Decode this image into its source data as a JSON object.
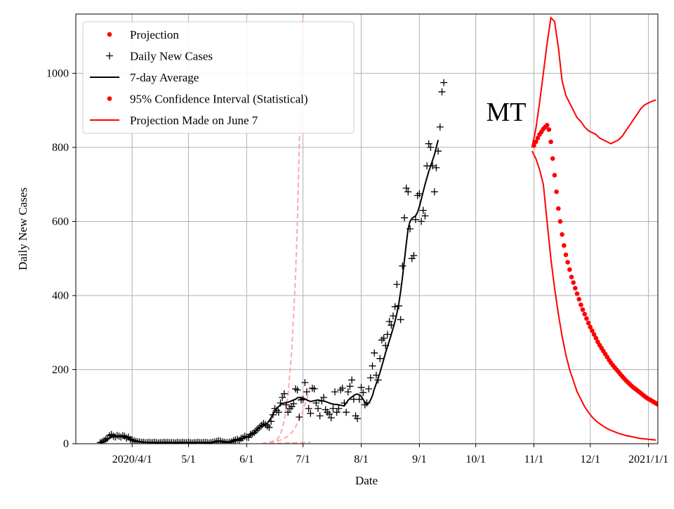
{
  "chart_data": {
    "type": "scatter",
    "title": "",
    "xlabel": "Date",
    "ylabel": "Daily New Cases",
    "annotation": "MT",
    "xlim_days_since_2020_01_01": [
      61,
      371
    ],
    "ylim": [
      0,
      1160
    ],
    "grid": true,
    "legend_position": "top-left",
    "x_ticks": [
      {
        "day": 91,
        "label": "2020/4/1"
      },
      {
        "day": 121,
        "label": "5/1"
      },
      {
        "day": 152,
        "label": "6/1"
      },
      {
        "day": 182,
        "label": "7/1"
      },
      {
        "day": 213,
        "label": "8/1"
      },
      {
        "day": 244,
        "label": "9/1"
      },
      {
        "day": 274,
        "label": "10/1"
      },
      {
        "day": 305,
        "label": "11/1"
      },
      {
        "day": 335,
        "label": "12/1"
      },
      {
        "day": 366,
        "label": "2021/1/1"
      }
    ],
    "y_ticks": [
      0,
      200,
      400,
      600,
      800,
      1000
    ],
    "legend": [
      {
        "label": "Projection",
        "marker": "dot",
        "color": "#ff0000"
      },
      {
        "label": "Daily New Cases",
        "marker": "plus",
        "color": "#000000"
      },
      {
        "label": "7-day Average",
        "marker": "line",
        "color": "#000000"
      },
      {
        "label": "95% Confidence Interval (Statistical)",
        "marker": "dot",
        "color": "#ff0000"
      },
      {
        "label": "Projection Made on June 7",
        "marker": "line",
        "color": "#ff0000"
      }
    ],
    "colors": {
      "daily": "#000000",
      "average": "#000000",
      "projection": "#ff0000",
      "ci": "#ff0000",
      "june7": "#ffaaaa"
    },
    "daily_new_cases": {
      "x_start_day": 74,
      "values": [
        3,
        5,
        8,
        12,
        15,
        22,
        25,
        20,
        18,
        22,
        20,
        18,
        22,
        20,
        15,
        18,
        12,
        10,
        8,
        6,
        5,
        5,
        4,
        4,
        3,
        3,
        4,
        3,
        3,
        4,
        3,
        2,
        3,
        3,
        4,
        3,
        4,
        3,
        3,
        3,
        2,
        4,
        3,
        3,
        4,
        3,
        3,
        4,
        3,
        2,
        3,
        3,
        4,
        3,
        3,
        3,
        4,
        3,
        2,
        3,
        4,
        5,
        6,
        8,
        7,
        5,
        4,
        3,
        3,
        4,
        5,
        8,
        10,
        12,
        9,
        14,
        16,
        20,
        18,
        17,
        25,
        27,
        30,
        35,
        40,
        45,
        50,
        55,
        52,
        48,
        44,
        60,
        78,
        95,
        90,
        85,
        110,
        125,
        135,
        105,
        85,
        95,
        100,
        108,
        148,
        145,
        72,
        118,
        120,
        165,
        140,
        95,
        82,
        150,
        148,
        110,
        95,
        75,
        115,
        125,
        92,
        85,
        80,
        70,
        95,
        140,
        85,
        95,
        145,
        150,
        110,
        85,
        140,
        155,
        172,
        120,
        75,
        68,
        120,
        152,
        138,
        105,
        110,
        148,
        178,
        210,
        245,
        185,
        172,
        230,
        280,
        285,
        265,
        295,
        330,
        320,
        345,
        370,
        430,
        372,
        335,
        480,
        610,
        690,
        680,
        580,
        500,
        508,
        605,
        670,
        675,
        600,
        630,
        615,
        750,
        810,
        800,
        750,
        680,
        745,
        790,
        855,
        950,
        975
      ]
    },
    "seven_day_average": {
      "x_start_day": 74,
      "values": [
        2,
        4,
        6,
        9,
        12,
        15,
        18,
        19,
        20,
        20,
        20,
        19,
        19,
        18,
        17,
        16,
        14,
        12,
        10,
        8,
        7,
        6,
        5,
        4,
        4,
        3,
        3,
        3,
        3,
        3,
        3,
        3,
        3,
        3,
        3,
        3,
        3,
        3,
        3,
        3,
        3,
        3,
        3,
        3,
        3,
        3,
        3,
        3,
        3,
        3,
        3,
        3,
        3,
        3,
        3,
        3,
        3,
        3,
        3,
        3,
        4,
        4,
        5,
        5,
        6,
        6,
        6,
        5,
        5,
        5,
        6,
        7,
        8,
        10,
        11,
        12,
        14,
        16,
        18,
        20,
        22,
        26,
        31,
        36,
        41,
        45,
        48,
        50,
        52,
        55,
        62,
        70,
        80,
        88,
        95,
        100,
        105,
        108,
        110,
        110,
        112,
        114,
        116,
        118,
        120,
        124,
        125,
        124,
        123,
        121,
        118,
        116,
        114,
        115,
        116,
        117,
        118,
        117,
        116,
        115,
        114,
        112,
        110,
        108,
        107,
        106,
        106,
        105,
        104,
        103,
        102,
        110,
        117,
        122,
        126,
        130,
        133,
        134,
        132,
        128,
        120,
        112,
        107,
        110,
        118,
        130,
        148,
        162,
        176,
        192,
        210,
        228,
        246,
        262,
        278,
        295,
        312,
        330,
        352,
        378,
        410,
        450,
        495,
        540,
        580,
        600,
        608,
        612,
        615,
        625,
        640,
        660,
        680,
        700,
        718,
        735,
        750,
        765,
        780,
        800,
        820
      ]
    },
    "projection": {
      "x_start_day": 305,
      "values": [
        805,
        815,
        825,
        835,
        842,
        850,
        855,
        860,
        848,
        815,
        770,
        725,
        680,
        635,
        600,
        565,
        535,
        510,
        490,
        470,
        450,
        435,
        420,
        405,
        390,
        375,
        362,
        350,
        338,
        326,
        315,
        305,
        295,
        285,
        275,
        266,
        258,
        250,
        242,
        234,
        226,
        219,
        212,
        206,
        200,
        194,
        188,
        182,
        176,
        171,
        166,
        161,
        156,
        152,
        148,
        144,
        140,
        136,
        132,
        128,
        124,
        121,
        118,
        115,
        112,
        109,
        106
      ]
    },
    "ci_upper": {
      "x": [
        304,
        306,
        308,
        310,
        312,
        314,
        316,
        318,
        320,
        322,
        324,
        326,
        328,
        330,
        332,
        334,
        336,
        338,
        340,
        342,
        344,
        346,
        348,
        350,
        352,
        354,
        356,
        358,
        360,
        362,
        364,
        366,
        368,
        370
      ],
      "values": [
        800,
        850,
        920,
        1000,
        1080,
        1150,
        1140,
        1070,
        980,
        940,
        920,
        900,
        880,
        870,
        855,
        845,
        840,
        835,
        825,
        820,
        815,
        810,
        815,
        820,
        830,
        845,
        860,
        875,
        890,
        905,
        915,
        920,
        925,
        928
      ]
    },
    "ci_lower": {
      "x": [
        304,
        306,
        308,
        310,
        312,
        314,
        316,
        318,
        320,
        322,
        324,
        326,
        328,
        330,
        332,
        334,
        336,
        338,
        340,
        342,
        344,
        346,
        348,
        350,
        352,
        354,
        356,
        358,
        360,
        362,
        364,
        366,
        368,
        370
      ],
      "values": [
        790,
        770,
        740,
        700,
        600,
        500,
        420,
        350,
        290,
        240,
        200,
        170,
        140,
        120,
        100,
        85,
        72,
        62,
        54,
        47,
        41,
        36,
        32,
        28,
        25,
        22,
        20,
        18,
        16,
        14,
        13,
        12,
        11,
        10
      ]
    },
    "june7_projection": {
      "x": [
        160,
        164,
        168,
        170,
        172,
        174,
        176,
        178,
        179,
        180,
        181,
        182
      ],
      "values": [
        0,
        4,
        10,
        25,
        60,
        130,
        250,
        450,
        600,
        800,
        1000,
        1160
      ]
    },
    "june7_ci_upper": {
      "x": [
        160,
        166,
        170,
        174,
        176,
        178,
        180,
        182,
        184,
        186
      ],
      "values": [
        0,
        3,
        10,
        20,
        30,
        45,
        65,
        90,
        120,
        155
      ]
    },
    "june7_ci_lower": {
      "x": [
        160,
        168,
        176,
        182,
        186
      ],
      "values": [
        0,
        1,
        2,
        3,
        4
      ]
    }
  }
}
